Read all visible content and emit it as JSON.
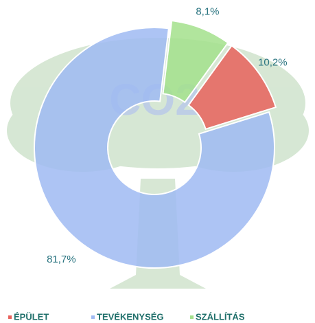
{
  "chart_data": {
    "type": "pie",
    "donut": true,
    "watermark": "CO2",
    "categories": [
      "ÉPÜLET",
      "TEVÉKENYSÉG",
      "SZÁLLÍTÁS"
    ],
    "values": [
      10.2,
      81.7,
      8.1
    ],
    "value_labels": [
      "10,2%",
      "81,7%",
      "8,1%"
    ],
    "colors": [
      "#e8615c",
      "#9fbaf2",
      "#a3e08c"
    ],
    "legend": "bottom"
  }
}
